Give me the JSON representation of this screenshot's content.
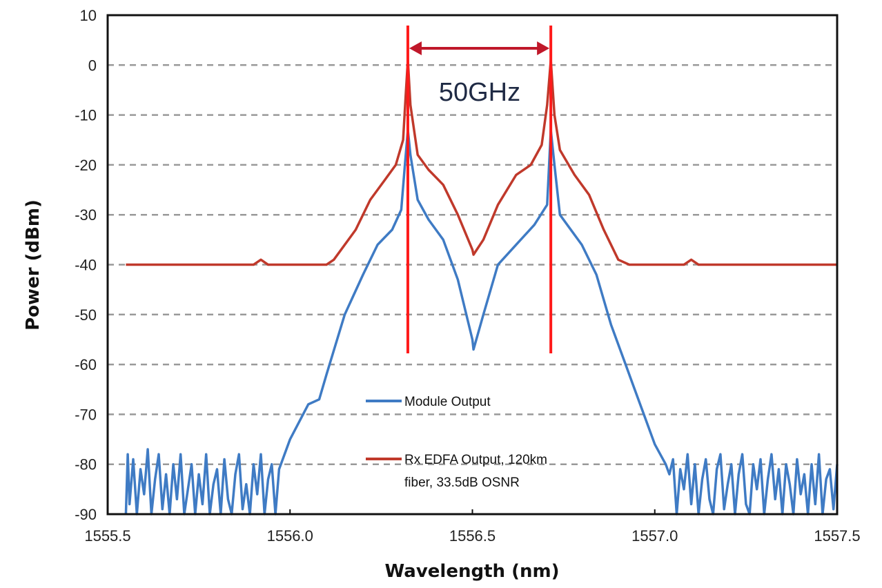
{
  "chart_data": {
    "type": "line",
    "title": "",
    "xlabel": "Wavelength (nm)",
    "ylabel": "Power (dBm)",
    "xlim": [
      1555.5,
      1557.5
    ],
    "ylim": [
      -90,
      10
    ],
    "xticks": [
      "1555.5",
      "1556.0",
      "1556.5",
      "1557.0",
      "1557.5"
    ],
    "yticks": [
      "10",
      "0",
      "-10",
      "-20",
      "-30",
      "-40",
      "-50",
      "-60",
      "-70",
      "-80",
      "-90"
    ],
    "grid": "horizontal dashed",
    "legend_position": "bottom-center inside plot",
    "series": [
      {
        "name": "Module Output",
        "color": "#3f7bc4",
        "x": [
          1555.55,
          1555.555,
          1555.56,
          1555.57,
          1555.58,
          1555.59,
          1555.6,
          1555.61,
          1555.62,
          1555.63,
          1555.64,
          1555.65,
          1555.66,
          1555.67,
          1555.68,
          1555.69,
          1555.7,
          1555.71,
          1555.72,
          1555.73,
          1555.74,
          1555.75,
          1555.76,
          1555.77,
          1555.78,
          1555.79,
          1555.8,
          1555.81,
          1555.82,
          1555.83,
          1555.84,
          1555.85,
          1555.86,
          1555.87,
          1555.88,
          1555.89,
          1555.9,
          1555.91,
          1555.92,
          1555.93,
          1555.94,
          1555.95,
          1555.96,
          1555.97,
          1556.0,
          1556.05,
          1556.08,
          1556.1,
          1556.15,
          1556.2,
          1556.24,
          1556.28,
          1556.305,
          1556.315,
          1556.323,
          1556.33,
          1556.35,
          1556.38,
          1556.42,
          1556.46,
          1556.5,
          1556.503,
          1556.53,
          1556.57,
          1556.62,
          1556.67,
          1556.705,
          1556.715,
          1556.725,
          1556.74,
          1556.8,
          1556.84,
          1556.88,
          1556.92,
          1556.94,
          1556.97,
          1557.0,
          1557.03,
          1557.04,
          1557.05,
          1557.06,
          1557.07,
          1557.08,
          1557.09,
          1557.1,
          1557.11,
          1557.12,
          1557.13,
          1557.14,
          1557.15,
          1557.16,
          1557.17,
          1557.18,
          1557.19,
          1557.2,
          1557.21,
          1557.22,
          1557.23,
          1557.24,
          1557.25,
          1557.26,
          1557.27,
          1557.28,
          1557.29,
          1557.3,
          1557.31,
          1557.32,
          1557.33,
          1557.34,
          1557.35,
          1557.36,
          1557.37,
          1557.38,
          1557.39,
          1557.4,
          1557.41,
          1557.42,
          1557.43,
          1557.44,
          1557.45,
          1557.46,
          1557.47,
          1557.48,
          1557.49,
          1557.5
        ],
        "y": [
          -90,
          -78,
          -88,
          -79,
          -90,
          -81,
          -86,
          -77,
          -90,
          -83,
          -78,
          -89,
          -82,
          -90,
          -80,
          -87,
          -78,
          -90,
          -85,
          -80,
          -90,
          -82,
          -88,
          -78,
          -90,
          -84,
          -81,
          -90,
          -79,
          -87,
          -90,
          -82,
          -78,
          -89,
          -84,
          -90,
          -80,
          -86,
          -78,
          -90,
          -83,
          -80,
          -90,
          -81,
          -75,
          -68,
          -67,
          -62,
          -50,
          -42,
          -36,
          -33,
          -29,
          -20,
          -13,
          -18,
          -27,
          -31,
          -35,
          -43,
          -55,
          -57,
          -50,
          -40,
          -36,
          -32,
          -28,
          -13,
          -20,
          -30,
          -36,
          -42,
          -52,
          -60,
          -64,
          -70,
          -76,
          -80,
          -82,
          -79,
          -90,
          -81,
          -85,
          -78,
          -88,
          -80,
          -90,
          -83,
          -79,
          -87,
          -90,
          -81,
          -78,
          -89,
          -84,
          -80,
          -90,
          -82,
          -78,
          -88,
          -90,
          -80,
          -85,
          -79,
          -90,
          -83,
          -78,
          -87,
          -81,
          -90,
          -80,
          -84,
          -90,
          -79,
          -86,
          -82,
          -90,
          -80,
          -88,
          -78,
          -90,
          -83,
          -81,
          -89,
          -80
        ]
      },
      {
        "name": "Rx EDFA Output, 120km fiber,  33.5dB OSNR",
        "color": "#c0392b",
        "x": [
          1555.55,
          1555.9,
          1555.92,
          1555.94,
          1556.1,
          1556.12,
          1556.18,
          1556.22,
          1556.26,
          1556.29,
          1556.31,
          1556.318,
          1556.323,
          1556.33,
          1556.35,
          1556.38,
          1556.42,
          1556.46,
          1556.5,
          1556.503,
          1556.53,
          1556.57,
          1556.62,
          1556.66,
          1556.69,
          1556.705,
          1556.715,
          1556.725,
          1556.74,
          1556.78,
          1556.82,
          1556.86,
          1556.9,
          1556.93,
          1557.08,
          1557.1,
          1557.12,
          1557.5
        ],
        "y": [
          -40,
          -40,
          -39,
          -40,
          -40,
          -39,
          -33,
          -27,
          -23,
          -20,
          -15,
          -5,
          1,
          -8,
          -18,
          -21,
          -24,
          -30,
          -37,
          -38,
          -35,
          -28,
          -22,
          -20,
          -16,
          -8,
          1,
          -10,
          -17,
          -22,
          -26,
          -33,
          -39,
          -40,
          -40,
          -39,
          -40,
          -40
        ]
      }
    ],
    "annotations": {
      "spacing_label": "50GHz",
      "marker_wavelengths": [
        1556.323,
        1556.715
      ],
      "marker_color": "#ff1a1a",
      "arrow_color": "#c0182a"
    }
  }
}
